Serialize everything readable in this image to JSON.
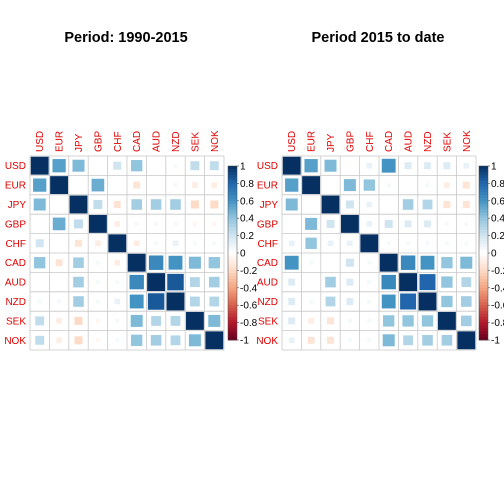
{
  "chart_data": [
    {
      "type": "heatmap",
      "title": "Period: 1990-2015",
      "labels": [
        "USD",
        "EUR",
        "JPY",
        "GBP",
        "CHF",
        "CAD",
        "AUD",
        "NZD",
        "SEK",
        "NOK"
      ],
      "ylim": [
        -1,
        1
      ],
      "legend_ticks": [
        "1",
        "0.8",
        "0.6",
        "0.4",
        "0.2",
        "0",
        "-0.2",
        "-0.4",
        "-0.6",
        "-0.8",
        "-1"
      ],
      "legend_placement": "right",
      "grid": true,
      "matrix": [
        [
          1.0,
          0.55,
          0.45,
          0.0,
          0.2,
          0.4,
          0.0,
          0.05,
          0.25,
          0.25
        ],
        [
          0.55,
          1.0,
          0.0,
          0.5,
          0.0,
          -0.15,
          0.0,
          0.05,
          -0.1,
          -0.1
        ],
        [
          0.45,
          0.0,
          1.0,
          0.25,
          -0.15,
          0.35,
          0.35,
          0.35,
          -0.2,
          -0.2
        ],
        [
          0.0,
          0.5,
          0.25,
          1.0,
          -0.1,
          0.05,
          0.05,
          0.05,
          -0.05,
          -0.05
        ],
        [
          0.2,
          0.0,
          -0.15,
          -0.1,
          1.0,
          -0.1,
          0.05,
          0.1,
          0.05,
          0.05
        ],
        [
          0.4,
          -0.15,
          0.35,
          0.05,
          -0.1,
          1.0,
          0.65,
          0.6,
          0.45,
          0.4
        ],
        [
          0.0,
          0.0,
          0.35,
          0.05,
          0.05,
          0.65,
          1.0,
          0.85,
          0.3,
          0.35
        ],
        [
          0.05,
          0.05,
          0.35,
          0.05,
          0.1,
          0.6,
          0.85,
          1.0,
          0.3,
          0.3
        ],
        [
          0.25,
          -0.1,
          -0.2,
          -0.05,
          0.05,
          0.45,
          0.3,
          0.3,
          1.0,
          0.45
        ],
        [
          0.25,
          -0.1,
          -0.2,
          -0.05,
          0.05,
          0.4,
          0.35,
          0.3,
          0.45,
          1.0
        ]
      ]
    },
    {
      "type": "heatmap",
      "title": "Period 2015 to date",
      "labels": [
        "USD",
        "EUR",
        "JPY",
        "GBP",
        "CHF",
        "CAD",
        "AUD",
        "NZD",
        "SEK",
        "NOK"
      ],
      "ylim": [
        -1,
        1
      ],
      "legend_ticks": [
        "1",
        "0.8",
        "0.6",
        "0.4",
        "0.2",
        "0",
        "-0.2",
        "-0.4",
        "-0.6",
        "-0.8",
        "-1"
      ],
      "legend_placement": "right",
      "grid": true,
      "matrix": [
        [
          1.0,
          0.55,
          0.45,
          0.0,
          0.1,
          0.6,
          0.15,
          0.15,
          0.15,
          0.1
        ],
        [
          0.55,
          1.0,
          0.0,
          0.45,
          0.4,
          0.05,
          0.0,
          0.05,
          -0.1,
          -0.15
        ],
        [
          0.45,
          0.0,
          1.0,
          0.2,
          0.1,
          0.0,
          0.35,
          0.3,
          -0.15,
          -0.15
        ],
        [
          0.0,
          0.45,
          0.2,
          1.0,
          0.1,
          0.2,
          0.15,
          0.15,
          0.05,
          0.05
        ],
        [
          0.1,
          0.4,
          0.1,
          0.1,
          1.0,
          0.05,
          0.05,
          0.05,
          0.05,
          0.05
        ],
        [
          0.6,
          0.05,
          0.0,
          0.2,
          0.05,
          1.0,
          0.65,
          0.6,
          0.4,
          0.45
        ],
        [
          0.15,
          0.0,
          0.35,
          0.15,
          0.05,
          0.65,
          1.0,
          0.8,
          0.4,
          0.3
        ],
        [
          0.15,
          0.05,
          0.3,
          0.15,
          0.05,
          0.6,
          0.8,
          1.0,
          0.4,
          0.35
        ],
        [
          0.15,
          -0.1,
          -0.15,
          0.05,
          0.05,
          0.4,
          0.4,
          0.4,
          1.0,
          0.35
        ],
        [
          0.1,
          -0.15,
          -0.15,
          0.05,
          0.05,
          0.45,
          0.3,
          0.35,
          0.35,
          1.0
        ]
      ]
    }
  ]
}
